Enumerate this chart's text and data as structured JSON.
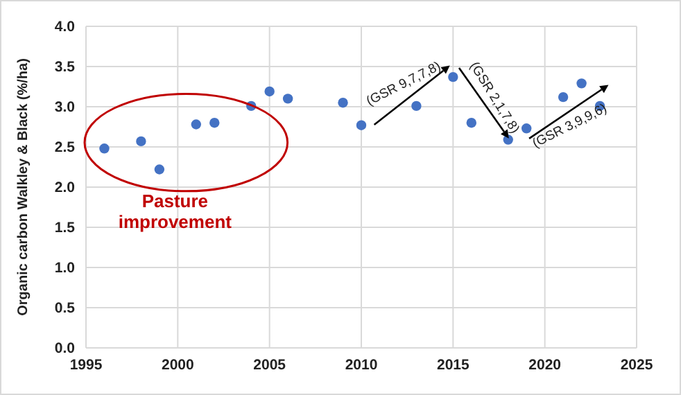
{
  "chart_data": {
    "type": "scatter",
    "ylabel": "Organic carbon Walkley & Black (%/ha)",
    "x": [
      1996,
      1998,
      1999,
      2001,
      2002,
      2004,
      2005,
      2006,
      2009,
      2010,
      2013,
      2015,
      2016,
      2018,
      2019,
      2021,
      2022,
      2023
    ],
    "series": [
      {
        "color": "#4472c4",
        "values": [
          2.48,
          2.57,
          2.22,
          2.78,
          2.8,
          3.01,
          3.19,
          3.1,
          3.05,
          2.77,
          3.01,
          3.37,
          2.8,
          2.59,
          2.73,
          3.12,
          3.29,
          3.01
        ]
      }
    ],
    "xlim": [
      1995,
      2025
    ],
    "xticks": [
      1995,
      2000,
      2005,
      2010,
      2015,
      2020,
      2025
    ],
    "ylim": [
      0,
      4
    ],
    "yticks": [
      {
        "value": 0,
        "label": "0.0"
      },
      {
        "value": 0.5,
        "label": "0.5"
      },
      {
        "value": 1,
        "label": "1.0"
      },
      {
        "value": 1.5,
        "label": "1.5"
      },
      {
        "value": 2,
        "label": "2.0"
      },
      {
        "value": 2.5,
        "label": "2.5"
      },
      {
        "value": 3,
        "label": "3.0"
      },
      {
        "value": 3.5,
        "label": "3.5"
      },
      {
        "value": 4,
        "label": "4.0"
      }
    ],
    "grid": true,
    "marker": "circle",
    "annotations": [
      "Pasture improvement",
      {
        "text": "(GSR 9,7,7,8)",
        "x": 2014.8,
        "y": 3.5
      },
      {
        "text": "(GSR 2,1,7,8)",
        "x": 2018,
        "y": 2.6
      },
      "(GSR 3,9,9,6)"
    ]
  }
}
